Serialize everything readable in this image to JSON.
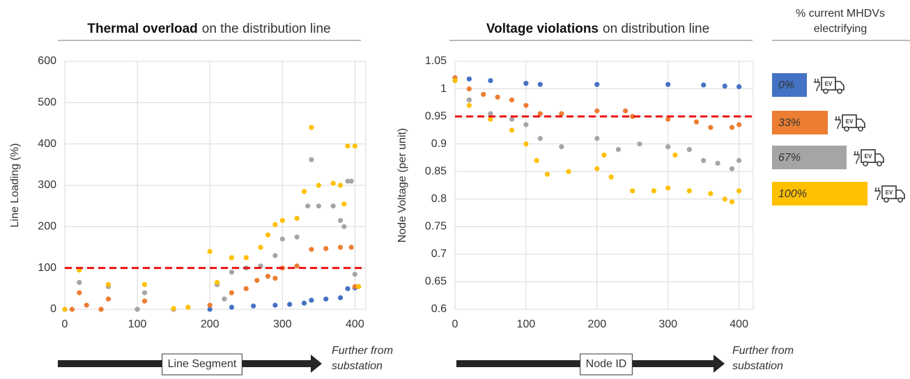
{
  "chart_data": [
    {
      "type": "scatter",
      "title_bold": "Thermal overload",
      "title_rest": "on the distribution line",
      "ylabel": "Line Loading (%)",
      "xlabel": "Line Segment",
      "direction_note": [
        "Further from",
        "substation"
      ],
      "xlim": [
        0,
        415
      ],
      "ylim": [
        0,
        600
      ],
      "xticks": [
        0,
        100,
        200,
        300,
        400
      ],
      "yticks": [
        0,
        100,
        200,
        300,
        400,
        500,
        600
      ],
      "grid": true,
      "threshold": 100,
      "threshold_color": "#ee1111",
      "series": [
        {
          "name": "0%",
          "color": "#4472c4",
          "x": [
            0,
            50,
            100,
            150,
            200,
            230,
            260,
            290,
            310,
            330,
            340,
            360,
            380,
            390,
            400,
            405
          ],
          "values": [
            0,
            0,
            0,
            0,
            0,
            5,
            8,
            10,
            12,
            15,
            22,
            25,
            28,
            50,
            52,
            55
          ]
        },
        {
          "name": "33%",
          "color": "#ed7d31",
          "x": [
            10,
            20,
            30,
            50,
            60,
            110,
            150,
            200,
            210,
            230,
            250,
            265,
            280,
            290,
            300,
            320,
            340,
            360,
            380,
            395,
            400
          ],
          "values": [
            0,
            40,
            10,
            0,
            25,
            20,
            0,
            10,
            60,
            40,
            50,
            70,
            80,
            75,
            100,
            105,
            145,
            147,
            150,
            150,
            55
          ]
        },
        {
          "name": "67%",
          "color": "#a5a5a5",
          "x": [
            20,
            60,
            100,
            110,
            150,
            210,
            220,
            230,
            250,
            270,
            290,
            300,
            320,
            335,
            340,
            350,
            370,
            380,
            385,
            390,
            395,
            400,
            405
          ],
          "values": [
            65,
            55,
            0,
            40,
            0,
            60,
            25,
            90,
            100,
            105,
            130,
            170,
            175,
            250,
            362,
            250,
            250,
            215,
            200,
            310,
            310,
            85,
            55
          ]
        },
        {
          "name": "100%",
          "color": "#ffc000",
          "x": [
            0,
            20,
            60,
            110,
            150,
            170,
            200,
            210,
            230,
            250,
            270,
            280,
            290,
            300,
            320,
            330,
            340,
            350,
            370,
            380,
            385,
            390,
            400,
            405
          ],
          "values": [
            0,
            95,
            60,
            60,
            2,
            5,
            140,
            65,
            125,
            125,
            150,
            180,
            205,
            215,
            220,
            285,
            440,
            300,
            305,
            300,
            255,
            395,
            395,
            55
          ]
        }
      ]
    },
    {
      "type": "scatter",
      "title_bold": "Voltage violations",
      "title_rest": "on distribution line",
      "ylabel": "Node Voltage (per unit)",
      "xlabel": "Node ID",
      "direction_note": [
        "Further from",
        "substation"
      ],
      "xlim": [
        0,
        420
      ],
      "ylim": [
        0.6,
        1.05
      ],
      "xticks": [
        0,
        100,
        200,
        300,
        400
      ],
      "yticks": [
        0.6,
        0.65,
        0.7,
        0.75,
        0.8,
        0.85,
        0.9,
        0.95,
        1,
        1.05
      ],
      "grid": true,
      "threshold": 0.95,
      "threshold_color": "#ee1111",
      "series": [
        {
          "name": "0%",
          "color": "#4472c4",
          "x": [
            0,
            20,
            50,
            100,
            120,
            200,
            300,
            350,
            380,
            400
          ],
          "values": [
            1.02,
            1.018,
            1.015,
            1.01,
            1.008,
            1.008,
            1.008,
            1.007,
            1.005,
            1.004
          ]
        },
        {
          "name": "33%",
          "color": "#ed7d31",
          "x": [
            0,
            20,
            40,
            60,
            80,
            100,
            120,
            150,
            200,
            240,
            250,
            300,
            340,
            360,
            390,
            400
          ],
          "values": [
            1.02,
            1.0,
            0.99,
            0.985,
            0.98,
            0.97,
            0.955,
            0.955,
            0.96,
            0.96,
            0.95,
            0.945,
            0.94,
            0.93,
            0.93,
            0.935
          ]
        },
        {
          "name": "67%",
          "color": "#a5a5a5",
          "x": [
            0,
            20,
            50,
            80,
            100,
            120,
            150,
            200,
            230,
            260,
            300,
            330,
            350,
            370,
            390,
            400
          ],
          "values": [
            1.015,
            0.98,
            0.955,
            0.945,
            0.935,
            0.91,
            0.895,
            0.91,
            0.89,
            0.9,
            0.895,
            0.89,
            0.87,
            0.865,
            0.855,
            0.87
          ]
        },
        {
          "name": "100%",
          "color": "#ffc000",
          "x": [
            0,
            20,
            50,
            80,
            100,
            115,
            130,
            160,
            200,
            210,
            220,
            250,
            280,
            300,
            310,
            330,
            360,
            380,
            390,
            400
          ],
          "values": [
            1.015,
            0.97,
            0.945,
            0.925,
            0.9,
            0.87,
            0.845,
            0.85,
            0.855,
            0.88,
            0.84,
            0.815,
            0.815,
            0.82,
            0.88,
            0.815,
            0.81,
            0.8,
            0.795,
            0.815
          ]
        }
      ]
    }
  ],
  "legend": {
    "title": [
      "% current MHDVs",
      "electrifying"
    ],
    "icon_text": "EV"
  }
}
